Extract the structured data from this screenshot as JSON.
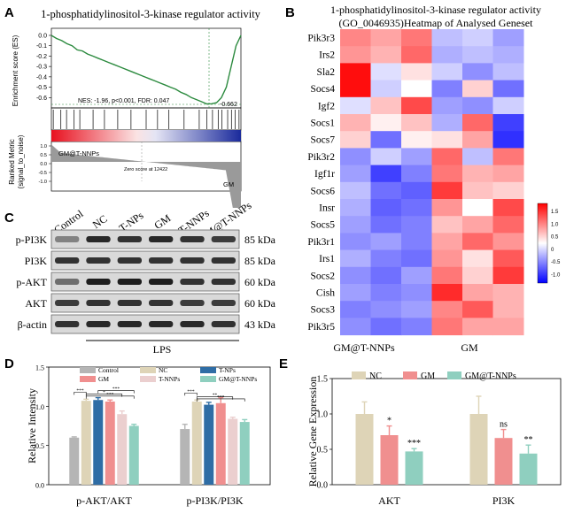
{
  "panel_letters": {
    "a": "A",
    "b": "B",
    "c": "C",
    "d": "D",
    "e": "E"
  },
  "panel_a": {
    "title": "1-phosphatidylinositol-3-kinase regulator activity",
    "ylabel_top": "Enrichment score (ES)",
    "ylabel_bottom": "Ranked Metric\n(signal_to_noise)",
    "stats": "NES: -1.96, p<0.001, FDR: 0.047",
    "min_label": "-0.662",
    "group_left": "GM@T-NNPs",
    "group_right": "GM",
    "zero_label": "Zero score at 12422",
    "ytick_labels": [
      "0.0",
      "-0.1",
      "-0.2",
      "-0.3",
      "-0.4",
      "-0.5",
      "-0.6"
    ],
    "bottom_ytick_labels": [
      "1.0",
      "0.5",
      "0.0",
      "-0.5",
      "-1.0"
    ],
    "es_curve": [
      0.0,
      -0.03,
      -0.05,
      -0.08,
      -0.1,
      -0.14,
      -0.15,
      -0.18,
      -0.2,
      -0.22,
      -0.24,
      -0.26,
      -0.28,
      -0.3,
      -0.32,
      -0.34,
      -0.36,
      -0.38,
      -0.4,
      -0.42,
      -0.44,
      -0.46,
      -0.48,
      -0.5,
      -0.52,
      -0.55,
      -0.57,
      -0.6,
      -0.62,
      -0.64,
      -0.662,
      -0.66,
      -0.65,
      -0.6,
      -0.5,
      -0.3,
      -0.1,
      0.0
    ],
    "hit_positions": [
      0.01,
      0.05,
      0.08,
      0.12,
      0.15,
      0.22,
      0.28,
      0.35,
      0.42,
      0.5,
      0.56,
      0.62,
      0.7,
      0.78,
      0.82,
      0.85,
      0.88,
      0.9,
      0.93,
      0.95,
      0.97,
      0.99
    ]
  },
  "panel_b": {
    "title_line1": "1-phosphatidylinositol-3-kinase regulator activity",
    "title_line2": "(GO_0046935)Heatmap of Analysed Geneset",
    "genes": [
      "Pik3r3",
      "Irs2",
      "Sla2",
      "Socs4",
      "Igf2",
      "Socs1",
      "Socs7",
      "Pik3r2",
      "Igf1r",
      "Socs6",
      "Insr",
      "Socs5",
      "Pik3r1",
      "Irs1",
      "Socs2",
      "Cish",
      "Socs3",
      "Pik3r5"
    ],
    "groups": [
      "GM@T-NNPs",
      "GM"
    ],
    "colorbar_ticks": [
      "1.5",
      "1.0",
      "0.5",
      "0",
      "-0.5",
      "-1.0"
    ],
    "matrix": [
      [
        0.8,
        0.6,
        0.9,
        -0.4,
        -0.3,
        -0.6
      ],
      [
        0.7,
        0.5,
        1.0,
        -0.5,
        -0.4,
        -0.5
      ],
      [
        1.6,
        -0.2,
        0.2,
        -0.3,
        -0.7,
        -0.4
      ],
      [
        1.7,
        -0.3,
        0.0,
        -0.8,
        0.3,
        -0.9
      ],
      [
        -0.2,
        0.4,
        1.2,
        -0.6,
        -0.7,
        -0.3
      ],
      [
        0.5,
        0.1,
        0.4,
        -0.5,
        1.0,
        -1.2
      ],
      [
        0.3,
        -0.9,
        0.1,
        0.2,
        0.6,
        -1.3
      ],
      [
        -0.7,
        -0.3,
        -0.6,
        1.0,
        -0.4,
        0.9
      ],
      [
        -0.6,
        -1.2,
        -0.8,
        0.9,
        0.5,
        0.6
      ],
      [
        -0.4,
        -0.9,
        -1.0,
        1.3,
        0.4,
        0.3
      ],
      [
        -0.5,
        -1.0,
        -0.9,
        0.7,
        0.0,
        1.2
      ],
      [
        -0.6,
        -0.9,
        -0.8,
        0.4,
        0.6,
        1.0
      ],
      [
        -0.7,
        -0.6,
        -0.8,
        0.6,
        1.0,
        0.7
      ],
      [
        -0.5,
        -0.8,
        -0.9,
        0.7,
        0.2,
        1.1
      ],
      [
        -0.7,
        -0.9,
        -0.6,
        0.9,
        0.3,
        1.3
      ],
      [
        -0.6,
        -0.8,
        -0.7,
        1.4,
        0.6,
        0.5
      ],
      [
        -0.8,
        -0.7,
        -0.6,
        0.8,
        1.1,
        0.5
      ],
      [
        -0.7,
        -0.9,
        -0.8,
        0.9,
        0.6,
        0.6
      ]
    ]
  },
  "panel_c": {
    "lanes": [
      "Control",
      "NC",
      "T-NPs",
      "GM",
      "T-NNPs",
      "GM@T-NNPs"
    ],
    "rows": [
      {
        "label": "p-PI3K",
        "kda": "85 kDa"
      },
      {
        "label": "PI3K",
        "kda": "85 kDa"
      },
      {
        "label": "p-AKT",
        "kda": "60 kDa"
      },
      {
        "label": "AKT",
        "kda": "60 kDa"
      },
      {
        "label": "β-actin",
        "kda": "43 kDa"
      }
    ],
    "band_intensity": [
      [
        0.45,
        0.9,
        0.85,
        0.9,
        0.85,
        0.8
      ],
      [
        0.85,
        0.85,
        0.85,
        0.85,
        0.85,
        0.85
      ],
      [
        0.55,
        0.95,
        0.95,
        0.95,
        0.85,
        0.85
      ],
      [
        0.8,
        0.85,
        0.85,
        0.85,
        0.8,
        0.8
      ],
      [
        0.85,
        0.9,
        0.9,
        0.9,
        0.9,
        0.85
      ]
    ],
    "treatment_label": "LPS"
  },
  "colors": {
    "control": "#b5b5b5",
    "nc": "#ded4b7",
    "tnps": "#2f6da5",
    "gm": "#f08f8f",
    "tnnps": "#ebcfcf",
    "gmtnnps": "#8fcfbf",
    "es_line": "#2b8a3e"
  },
  "chart_data": [
    {
      "type": "bar",
      "panel": "D",
      "ylabel": "Relative Intensity",
      "ylim": [
        0.0,
        1.5
      ],
      "yticks": [
        "0.0",
        "0.5",
        "1.0",
        "1.5"
      ],
      "categories": [
        "p-AKT/AKT",
        "p-PI3K/PI3K"
      ],
      "series": [
        {
          "name": "Control",
          "values": [
            0.6,
            0.71
          ],
          "errors": [
            0.01,
            0.06
          ]
        },
        {
          "name": "NC",
          "values": [
            1.07,
            1.06
          ],
          "errors": [
            0.02,
            0.02
          ]
        },
        {
          "name": "T-NPs",
          "values": [
            1.08,
            1.02
          ],
          "errors": [
            0.03,
            0.03
          ]
        },
        {
          "name": "GM",
          "values": [
            1.06,
            1.04
          ],
          "errors": [
            0.02,
            0.07
          ]
        },
        {
          "name": "T-NNPs",
          "values": [
            0.9,
            0.84
          ],
          "errors": [
            0.04,
            0.02
          ]
        },
        {
          "name": "GM@T-NNPs",
          "values": [
            0.75,
            0.8
          ],
          "errors": [
            0.02,
            0.03
          ]
        }
      ],
      "significance": [
        "***",
        "*",
        "***",
        "***",
        "***",
        "**",
        "***"
      ]
    },
    {
      "type": "bar",
      "panel": "E",
      "ylabel": "Relative Gene Expression",
      "ylim": [
        0.0,
        1.5
      ],
      "yticks": [
        "0.0",
        "0.5",
        "1.0",
        "1.5"
      ],
      "categories": [
        "AKT",
        "PI3K"
      ],
      "series": [
        {
          "name": "NC",
          "values": [
            1.0,
            1.0
          ],
          "errors": [
            0.17,
            0.25
          ]
        },
        {
          "name": "GM",
          "values": [
            0.7,
            0.66
          ],
          "errors": [
            0.13,
            0.12
          ]
        },
        {
          "name": "GM@T-NNPs",
          "values": [
            0.47,
            0.44
          ],
          "errors": [
            0.04,
            0.12
          ]
        }
      ],
      "significance": [
        [
          "*",
          "***"
        ],
        [
          "ns",
          "**"
        ]
      ]
    }
  ]
}
